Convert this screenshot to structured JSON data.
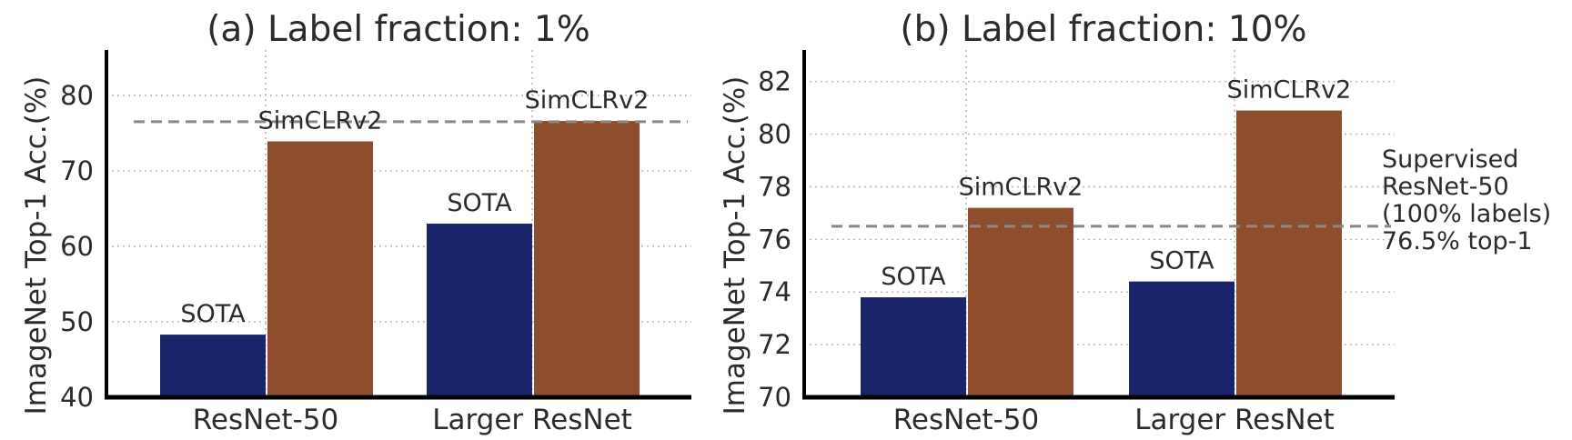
{
  "chart_data": [
    {
      "type": "bar",
      "title": "(a) Label fraction: 1%",
      "ylabel": "ImageNet Top-1 Acc.(%)",
      "xlabel": "",
      "ylim": [
        40,
        86
      ],
      "yticks": [
        40,
        50,
        60,
        70,
        80
      ],
      "categories": [
        "ResNet-50",
        "Larger ResNet"
      ],
      "series": [
        {
          "name": "SOTA",
          "values": [
            48.3,
            63.0
          ]
        },
        {
          "name": "SimCLRv2",
          "values": [
            73.9,
            76.6
          ]
        }
      ],
      "reference_line": {
        "value": 76.5,
        "style": "dashed"
      },
      "grid": true
    },
    {
      "type": "bar",
      "title": "(b) Label fraction: 10%",
      "ylabel": "ImageNet Top-1 Acc.(%)",
      "xlabel": "",
      "ylim": [
        70,
        83.2
      ],
      "yticks": [
        70,
        72,
        74,
        76,
        78,
        80,
        82
      ],
      "categories": [
        "ResNet-50",
        "Larger ResNet"
      ],
      "series": [
        {
          "name": "SOTA",
          "values": [
            73.8,
            74.4
          ]
        },
        {
          "name": "SimCLRv2",
          "values": [
            77.2,
            80.9
          ]
        }
      ],
      "reference_line": {
        "value": 76.5,
        "style": "dashed",
        "label_lines": [
          "Supervised",
          "ResNet-50",
          "(100% labels)",
          "76.5% top-1"
        ]
      },
      "grid": true
    }
  ],
  "colors": {
    "sota": "#1a246b",
    "simclr": "#8e4e2e",
    "reference": "#888888",
    "grid": "#bdbdbd",
    "axis": "#000000"
  }
}
